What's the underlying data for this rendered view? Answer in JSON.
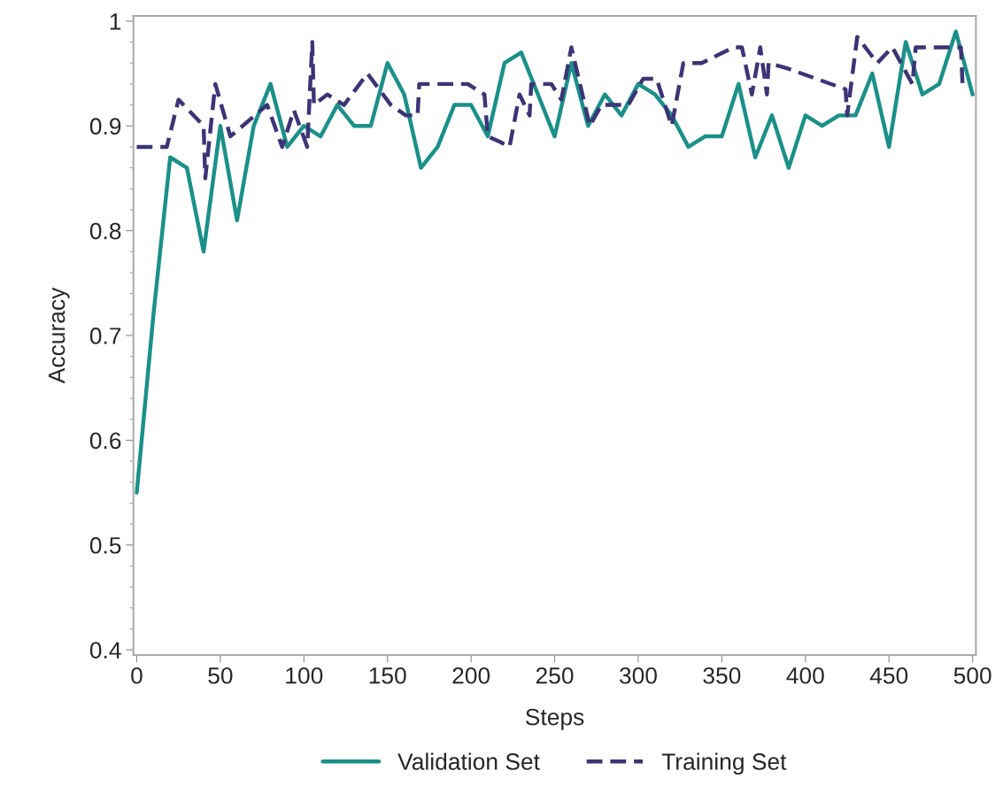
{
  "chart_data": {
    "type": "line",
    "xlabel": "Steps",
    "ylabel": "Accuracy",
    "xlim": [
      -2,
      502
    ],
    "ylim": [
      0.395,
      1.005
    ],
    "xticks": [
      0,
      50,
      100,
      150,
      200,
      250,
      300,
      350,
      400,
      450,
      500
    ],
    "yticks": [
      0.4,
      0.5,
      0.6,
      0.7,
      0.8,
      0.9,
      {
        "value": 1,
        "label": "1"
      }
    ],
    "grid": false,
    "legend": "bottom",
    "marker": "none",
    "series": [
      {
        "name": "Validation Set",
        "color": "#1a9089",
        "line_style": "solid",
        "x": [
          0,
          10,
          20,
          30,
          40,
          50,
          60,
          70,
          80,
          90,
          100,
          110,
          120,
          130,
          140,
          150,
          160,
          170,
          180,
          190,
          200,
          210,
          220,
          230,
          240,
          250,
          260,
          270,
          280,
          290,
          300,
          310,
          320,
          330,
          340,
          350,
          360,
          370,
          380,
          390,
          400,
          410,
          420,
          430,
          440,
          450,
          460,
          470,
          480,
          490,
          500
        ],
        "values": [
          0.55,
          0.72,
          0.87,
          0.86,
          0.78,
          0.9,
          0.81,
          0.9,
          0.94,
          0.88,
          0.9,
          0.89,
          0.92,
          0.9,
          0.9,
          0.96,
          0.93,
          0.86,
          0.88,
          0.92,
          0.92,
          0.89,
          0.96,
          0.97,
          0.93,
          0.89,
          0.96,
          0.9,
          0.93,
          0.91,
          0.94,
          0.93,
          0.91,
          0.88,
          0.89,
          0.89,
          0.94,
          0.87,
          0.91,
          0.86,
          0.91,
          0.9,
          0.91,
          0.91,
          0.95,
          0.88,
          0.98,
          0.93,
          0.94,
          0.99,
          0.93
        ]
      },
      {
        "name": "Training Set",
        "color": "#3b3577",
        "line_style": "dashed",
        "x": [
          0,
          18,
          25,
          40,
          41,
          47,
          56,
          78,
          87,
          94,
          102,
          105,
          106,
          114,
          124,
          138,
          152,
          161,
          168,
          169,
          180,
          198,
          208,
          210,
          217,
          223,
          229,
          235,
          236,
          248,
          254,
          260,
          271,
          278,
          294,
          303,
          311,
          320,
          327,
          338,
          357,
          362,
          368,
          373,
          377,
          378,
          389,
          424,
          425,
          431,
          443,
          452,
          464,
          466,
          493,
          494
        ],
        "values": [
          0.88,
          0.88,
          0.925,
          0.9,
          0.85,
          0.94,
          0.89,
          0.92,
          0.88,
          0.915,
          0.88,
          0.98,
          0.92,
          0.93,
          0.92,
          0.95,
          0.92,
          0.91,
          0.91,
          0.94,
          0.94,
          0.94,
          0.93,
          0.89,
          0.885,
          0.88,
          0.93,
          0.91,
          0.94,
          0.94,
          0.925,
          0.975,
          0.9,
          0.92,
          0.92,
          0.945,
          0.945,
          0.9,
          0.96,
          0.96,
          0.975,
          0.975,
          0.93,
          0.975,
          0.93,
          0.96,
          0.955,
          0.935,
          0.91,
          0.985,
          0.96,
          0.975,
          0.94,
          0.975,
          0.975,
          0.94
        ]
      }
    ]
  }
}
